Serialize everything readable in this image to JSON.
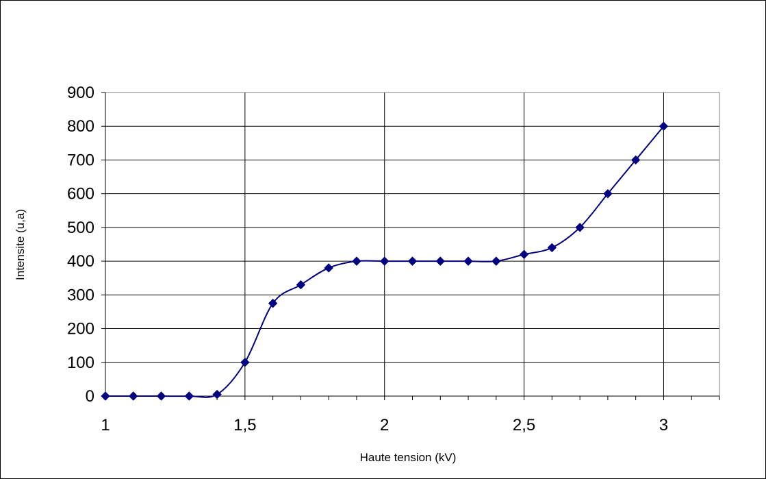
{
  "chart_data": {
    "type": "line",
    "title": "",
    "xlabel": "Haute tension (kV)",
    "ylabel": "Intensite (u,a)",
    "xlim": [
      1,
      3.2
    ],
    "ylim": [
      0,
      900
    ],
    "x_ticks": [
      1,
      1.5,
      2,
      2.5,
      3
    ],
    "x_tick_labels": [
      "1",
      "1,5",
      "2",
      "2,5",
      "3"
    ],
    "x_minor_step": 0.1,
    "y_ticks": [
      0,
      100,
      200,
      300,
      400,
      500,
      600,
      700,
      800,
      900
    ],
    "y_tick_labels": [
      "0",
      "100",
      "200",
      "300",
      "400",
      "500",
      "600",
      "700",
      "800",
      "900"
    ],
    "grid": true,
    "legend": "none",
    "smooth": true,
    "marker": "diamond",
    "series": [
      {
        "color": "#000080",
        "x": [
          1,
          1.1,
          1.2,
          1.3,
          1.4,
          1.5,
          1.6,
          1.7,
          1.8,
          1.9,
          2,
          2.1,
          2.2,
          2.3,
          2.4,
          2.5,
          2.6,
          2.7,
          2.8,
          2.9,
          3
        ],
        "y": [
          0,
          0,
          0,
          0,
          5,
          100,
          275,
          330,
          380,
          400,
          400,
          400,
          400,
          400,
          400,
          420,
          440,
          500,
          600,
          700,
          800
        ]
      }
    ]
  }
}
